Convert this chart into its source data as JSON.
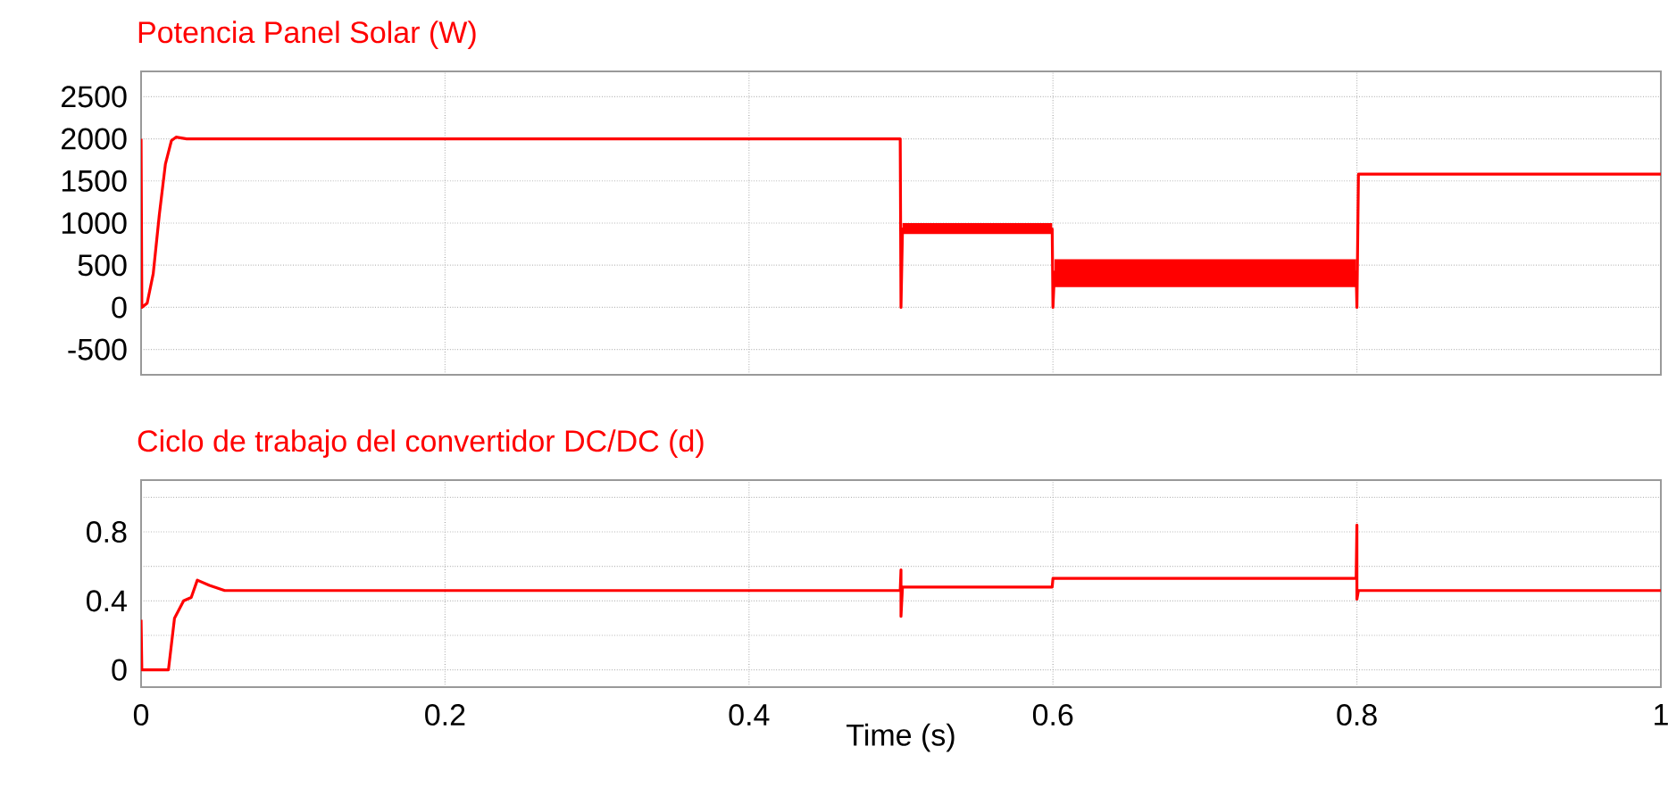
{
  "chart_data": [
    {
      "type": "line",
      "title": "Potencia Panel Solar (W)",
      "x": [
        0,
        0.0005,
        0.004,
        0.008,
        0.012,
        0.016,
        0.02,
        0.023,
        0.03,
        0.4995,
        0.5,
        0.501,
        0.5995,
        0.6,
        0.601,
        0.7995,
        0.8,
        0.801,
        1
      ],
      "series": [
        {
          "color": "#ff0000",
          "values": [
            2000,
            0,
            50,
            400,
            1100,
            1700,
            1980,
            2020,
            2000,
            2000,
            0,
            930,
            930,
            0,
            420,
            420,
            0,
            1580,
            1580
          ],
          "lower": [
            null,
            null,
            null,
            null,
            null,
            null,
            null,
            null,
            null,
            null,
            null,
            870,
            870,
            null,
            240,
            240,
            null,
            null,
            null
          ],
          "upper": [
            null,
            null,
            null,
            null,
            null,
            null,
            null,
            null,
            null,
            null,
            null,
            1000,
            1000,
            null,
            570,
            570,
            null,
            null,
            null
          ]
        }
      ],
      "xlim": [
        0,
        1
      ],
      "xticks": [
        0,
        0.2,
        0.4,
        0.6,
        0.8,
        1
      ],
      "ylim": [
        -800,
        2800
      ],
      "yticks": [
        -500,
        0,
        500,
        1000,
        1500,
        2000,
        2500
      ],
      "grid": true,
      "tick_labels": "y"
    },
    {
      "type": "line",
      "title": "Ciclo de trabajo del convertidor DC/DC (d)",
      "xlabel": "Time (s)",
      "x": [
        0,
        0.0005,
        0.018,
        0.022,
        0.028,
        0.033,
        0.037,
        0.045,
        0.055,
        0.4995,
        0.5,
        0.5,
        0.501,
        0.5995,
        0.6,
        0.7995,
        0.8,
        0.8,
        0.801,
        1
      ],
      "series": [
        {
          "color": "#ff0000",
          "values": [
            0.29,
            0,
            0,
            0.3,
            0.4,
            0.42,
            0.52,
            0.49,
            0.46,
            0.46,
            0.58,
            0.31,
            0.48,
            0.48,
            0.53,
            0.53,
            0.84,
            0.41,
            0.46,
            0.46
          ]
        }
      ],
      "xlim": [
        0,
        1
      ],
      "xticks": [
        0,
        0.2,
        0.4,
        0.6,
        0.8,
        1
      ],
      "ylim": [
        -0.1,
        1.1
      ],
      "yticks": [
        0,
        {
          "value": 0.2,
          "label": null
        },
        0.4,
        {
          "value": 0.6,
          "label": null
        },
        0.8,
        {
          "value": 1,
          "label": null
        }
      ],
      "grid": true
    }
  ]
}
